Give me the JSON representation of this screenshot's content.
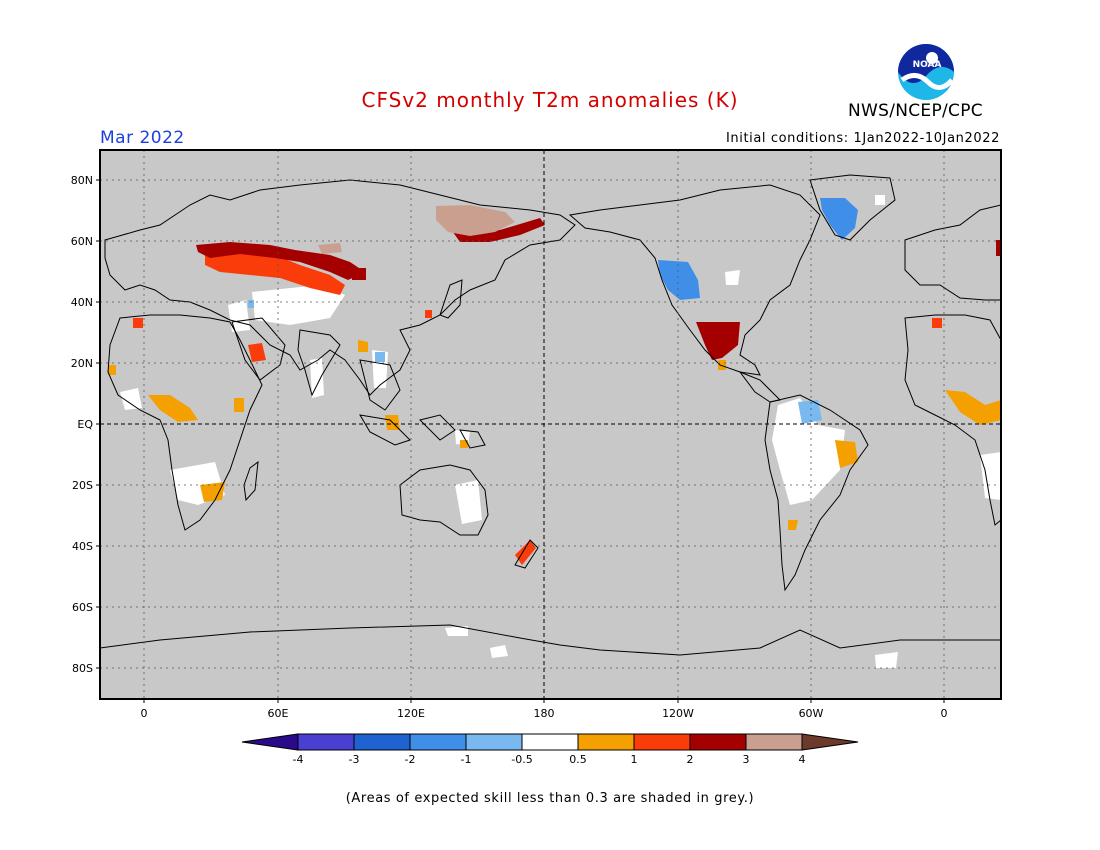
{
  "title": "CFSv2 monthly T2m anomalies (K)",
  "period": "Mar 2022",
  "initial_conditions": "Initial conditions: 1Jan2022-10Jan2022",
  "agency": "NWS/NCEP/CPC",
  "logo_text": "NOAA",
  "footnote": "(Areas of expected skill less than 0.3 are shaded in grey.)",
  "map": {
    "lat_labels": [
      "80N",
      "60N",
      "40N",
      "20N",
      "EQ",
      "20S",
      "40S",
      "60S",
      "80S"
    ],
    "lon_labels": [
      "0",
      "60E",
      "120E",
      "180",
      "120W",
      "60W",
      "0"
    ],
    "colors": {
      "skill_mask": "#c8c8c8",
      "frame": "#000000",
      "grid": "#555555"
    }
  },
  "colorbar": {
    "tick_labels": [
      "-4",
      "-3",
      "-2",
      "-1",
      "-0.5",
      "0.5",
      "1",
      "2",
      "3",
      "4"
    ],
    "colors": [
      "#2a0a8a",
      "#4a3fd0",
      "#1f63d0",
      "#3f8fe8",
      "#7ab8f0",
      "#ffffff",
      "#f4a000",
      "#fa3c0a",
      "#a50000",
      "#c9a090",
      "#6b3a2a"
    ]
  },
  "anomaly_regions": [
    {
      "region": "Western Russia / Siberia",
      "anomaly_k": "2 to 3"
    },
    {
      "region": "Kazakhstan / Central Asia",
      "anomaly_k": "1 to 2"
    },
    {
      "region": "Eastern Siberia",
      "anomaly_k": "3 to 4"
    },
    {
      "region": "Greenland",
      "anomaly_k": "-1 to -2"
    },
    {
      "region": "Western North America",
      "anomaly_k": "-1 to -2"
    },
    {
      "region": "Mexico",
      "anomaly_k": "2 to 3"
    },
    {
      "region": "Northern South America",
      "anomaly_k": "-0.5 to -1"
    },
    {
      "region": "West Africa / Sahel",
      "anomaly_k": "0.5 to 1"
    },
    {
      "region": "New Zealand",
      "anomaly_k": "1 to 2"
    }
  ]
}
